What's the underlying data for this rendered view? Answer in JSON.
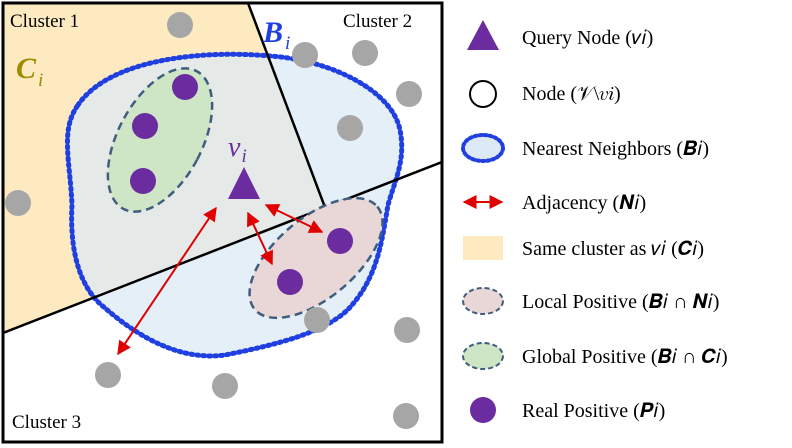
{
  "clusters": {
    "c1": "Cluster 1",
    "c2": "Cluster 2",
    "c3": "Cluster 3"
  },
  "region_labels": {
    "ci_main": "C",
    "ci_sub": "i",
    "bi_main": "B",
    "bi_sub": "i",
    "query_main": "v",
    "query_sub": "i"
  },
  "legend": [
    {
      "key": "query",
      "label": "Query Node (𝑣𝑖)"
    },
    {
      "key": "node",
      "label": "Node (𝒱\\𝑣𝑖)"
    },
    {
      "key": "neighbors",
      "label": "Nearest Neighbors (𝑩𝑖)"
    },
    {
      "key": "adjacency",
      "label": "Adjacency (𝑵𝑖)"
    },
    {
      "key": "cluster",
      "label": "Same cluster as 𝑣𝑖 (𝑪𝑖)"
    },
    {
      "key": "local",
      "label": "Local Positive (𝑩𝑖 ∩ 𝑵𝑖)"
    },
    {
      "key": "global",
      "label": "Global Positive (𝑩𝑖 ∩ 𝑪𝑖)"
    },
    {
      "key": "real",
      "label": "Real Positive (𝑷𝑖)"
    }
  ],
  "colors": {
    "cluster_fill": "#FDEAC0",
    "neighbors_fill": "#E3EEF8",
    "neighbors_border": "#1F3FE0",
    "global_fill": "#CFE6C6",
    "local_fill": "#E9D6D6",
    "ellipse_border": "#3F5E7E",
    "purple": "#6A2C9E",
    "gray": "#A6A6A6",
    "arrow": "#E00000",
    "ci_color": "#A08A00",
    "bi_color": "#1F3FE0"
  }
}
